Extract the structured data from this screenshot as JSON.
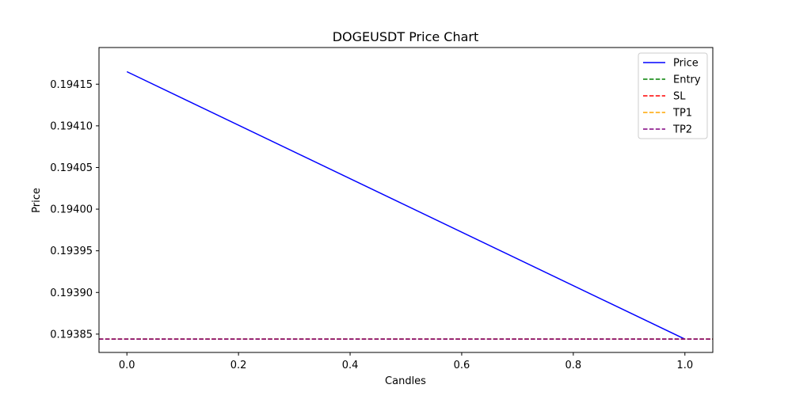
{
  "chart_data": {
    "type": "line",
    "title": "DOGEUSDT Price Chart",
    "xlabel": "Candles",
    "ylabel": "Price",
    "xlim": [
      -0.05,
      1.05
    ],
    "ylim": [
      0.193828,
      0.194194
    ],
    "xticks": [
      0.0,
      0.2,
      0.4,
      0.6,
      0.8,
      1.0
    ],
    "xtick_labels": [
      "0.0",
      "0.2",
      "0.4",
      "0.6",
      "0.8",
      "1.0"
    ],
    "yticks": [
      0.19385,
      0.1939,
      0.19395,
      0.194,
      0.19405,
      0.1941,
      0.19415
    ],
    "ytick_labels": [
      "0.19385",
      "0.19390",
      "0.19395",
      "0.19400",
      "0.19405",
      "0.19410",
      "0.19415"
    ],
    "grid": false,
    "legend_position": "top-right",
    "series": [
      {
        "name": "Price",
        "style": "solid",
        "color": "#0000ff",
        "x": [
          0,
          1
        ],
        "y": [
          0.194165,
          0.193844
        ]
      }
    ],
    "hlines": [
      {
        "name": "Entry",
        "style": "dashed",
        "color": "#008000",
        "y": 0.193844
      },
      {
        "name": "SL",
        "style": "dashed",
        "color": "#ff0000",
        "y": 0.193844
      },
      {
        "name": "TP1",
        "style": "dashed",
        "color": "#ffa500",
        "y": 0.193844
      },
      {
        "name": "TP2",
        "style": "dashed",
        "color": "#800080",
        "y": 0.193844
      }
    ]
  }
}
